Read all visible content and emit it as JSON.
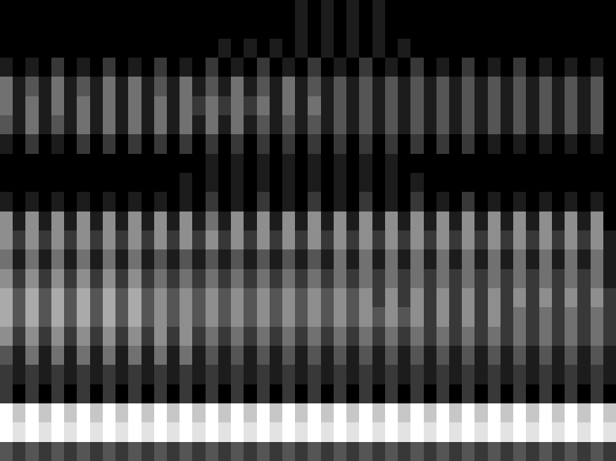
{
  "chart_data": {
    "type": "heatmap",
    "tick_labels": false,
    "color": "gray",
    "clim": [
      0,
      9
    ],
    "cells": [
      [
        0,
        0,
        0,
        0,
        0,
        0,
        0,
        0,
        0,
        0,
        0,
        0,
        0,
        0,
        0,
        0,
        0,
        0,
        0,
        0,
        0,
        0,
        0,
        1,
        0,
        1,
        0,
        1,
        0,
        1,
        0,
        0,
        0,
        0,
        0,
        0,
        0,
        0,
        0,
        0,
        0,
        0,
        0,
        0,
        0,
        0,
        0,
        0
      ],
      [
        0,
        0,
        0,
        0,
        0,
        0,
        0,
        0,
        0,
        0,
        0,
        0,
        0,
        0,
        0,
        0,
        0,
        0,
        0,
        0,
        0,
        0,
        0,
        1,
        0,
        1,
        0,
        1,
        0,
        1,
        0,
        0,
        0,
        0,
        0,
        0,
        0,
        0,
        0,
        0,
        0,
        0,
        0,
        0,
        0,
        0,
        0,
        0
      ],
      [
        0,
        0,
        0,
        0,
        0,
        0,
        0,
        0,
        0,
        0,
        0,
        0,
        0,
        0,
        0,
        0,
        0,
        1,
        0,
        1,
        0,
        1,
        0,
        1,
        0,
        1,
        0,
        1,
        0,
        1,
        0,
        1,
        0,
        0,
        0,
        0,
        0,
        0,
        0,
        0,
        0,
        0,
        0,
        0,
        0,
        0,
        0,
        0
      ],
      [
        1,
        0,
        1,
        0,
        2,
        0,
        1,
        0,
        2,
        0,
        1,
        0,
        2,
        0,
        1,
        0,
        2,
        0,
        1,
        0,
        2,
        0,
        1,
        0,
        2,
        0,
        1,
        0,
        2,
        0,
        1,
        0,
        2,
        0,
        1,
        0,
        2,
        0,
        1,
        0,
        2,
        0,
        1,
        0,
        1,
        0,
        1,
        0
      ],
      [
        4,
        1,
        3,
        1,
        4,
        1,
        3,
        1,
        4,
        1,
        4,
        1,
        3,
        1,
        4,
        1,
        3,
        1,
        4,
        1,
        3,
        1,
        4,
        1,
        3,
        1,
        3,
        1,
        3,
        1,
        3,
        1,
        3,
        1,
        3,
        1,
        3,
        1,
        3,
        1,
        3,
        1,
        3,
        1,
        3,
        1,
        3,
        0
      ],
      [
        4,
        1,
        4,
        1,
        4,
        1,
        4,
        1,
        4,
        1,
        4,
        1,
        4,
        1,
        4,
        2,
        4,
        2,
        4,
        2,
        4,
        1,
        4,
        1,
        4,
        1,
        3,
        1,
        3,
        1,
        3,
        1,
        3,
        1,
        3,
        1,
        3,
        1,
        3,
        1,
        3,
        1,
        3,
        1,
        3,
        1,
        3,
        0
      ],
      [
        3,
        1,
        4,
        1,
        3,
        1,
        4,
        1,
        4,
        1,
        4,
        1,
        4,
        1,
        4,
        1,
        4,
        1,
        4,
        1,
        3,
        1,
        3,
        1,
        3,
        1,
        3,
        1,
        3,
        1,
        3,
        1,
        3,
        1,
        3,
        1,
        3,
        1,
        3,
        1,
        3,
        1,
        3,
        1,
        3,
        1,
        3,
        0
      ],
      [
        1,
        0,
        2,
        0,
        1,
        0,
        2,
        0,
        2,
        0,
        2,
        0,
        2,
        0,
        2,
        0,
        2,
        0,
        2,
        0,
        2,
        0,
        2,
        0,
        2,
        0,
        2,
        0,
        2,
        0,
        2,
        0,
        2,
        0,
        2,
        0,
        2,
        0,
        1,
        0,
        1,
        0,
        1,
        0,
        1,
        0,
        1,
        0
      ],
      [
        0,
        0,
        0,
        0,
        0,
        0,
        0,
        0,
        0,
        0,
        0,
        0,
        0,
        0,
        0,
        0,
        1,
        0,
        1,
        0,
        1,
        0,
        1,
        0,
        1,
        0,
        1,
        0,
        1,
        0,
        1,
        0,
        0,
        0,
        0,
        0,
        0,
        0,
        0,
        0,
        0,
        0,
        0,
        0,
        0,
        0,
        0,
        0
      ],
      [
        0,
        0,
        0,
        0,
        0,
        0,
        0,
        0,
        0,
        0,
        0,
        0,
        0,
        0,
        1,
        0,
        1,
        0,
        1,
        0,
        1,
        0,
        1,
        0,
        1,
        0,
        1,
        0,
        1,
        0,
        1,
        0,
        1,
        0,
        0,
        0,
        0,
        0,
        0,
        0,
        0,
        0,
        0,
        0,
        0,
        0,
        0,
        0
      ],
      [
        1,
        0,
        1,
        0,
        1,
        0,
        1,
        0,
        1,
        0,
        1,
        0,
        1,
        0,
        1,
        0,
        2,
        0,
        1,
        0,
        2,
        0,
        1,
        0,
        2,
        0,
        1,
        0,
        2,
        0,
        1,
        0,
        2,
        0,
        1,
        0,
        2,
        0,
        1,
        0,
        1,
        0,
        1,
        0,
        1,
        0,
        1,
        0
      ],
      [
        5,
        1,
        5,
        1,
        5,
        1,
        5,
        1,
        5,
        1,
        5,
        1,
        5,
        1,
        5,
        1,
        4,
        1,
        5,
        1,
        5,
        1,
        5,
        1,
        5,
        1,
        5,
        1,
        5,
        1,
        5,
        1,
        5,
        1,
        5,
        1,
        5,
        1,
        5,
        1,
        5,
        1,
        5,
        1,
        5,
        1,
        5,
        0
      ],
      [
        5,
        2,
        5,
        2,
        5,
        2,
        5,
        2,
        5,
        2,
        5,
        2,
        5,
        2,
        5,
        2,
        5,
        2,
        5,
        2,
        5,
        2,
        5,
        2,
        5,
        2,
        5,
        2,
        5,
        2,
        5,
        2,
        5,
        2,
        5,
        2,
        5,
        2,
        5,
        2,
        5,
        2,
        5,
        2,
        5,
        2,
        5,
        1
      ],
      [
        4,
        1,
        4,
        1,
        4,
        1,
        4,
        1,
        4,
        1,
        4,
        1,
        3,
        1,
        3,
        1,
        3,
        1,
        3,
        1,
        3,
        1,
        3,
        1,
        3,
        1,
        4,
        1,
        4,
        1,
        4,
        1,
        4,
        1,
        4,
        1,
        4,
        1,
        4,
        1,
        4,
        1,
        4,
        1,
        4,
        1,
        4,
        1
      ],
      [
        5,
        2,
        5,
        2,
        5,
        2,
        5,
        2,
        5,
        2,
        5,
        2,
        4,
        2,
        4,
        2,
        4,
        2,
        4,
        2,
        4,
        2,
        4,
        2,
        4,
        2,
        4,
        2,
        4,
        2,
        4,
        2,
        4,
        2,
        4,
        2,
        4,
        2,
        4,
        2,
        4,
        2,
        4,
        2,
        4,
        2,
        4,
        1
      ],
      [
        6,
        3,
        6,
        3,
        6,
        3,
        6,
        3,
        6,
        3,
        6,
        3,
        5,
        3,
        5,
        3,
        5,
        3,
        5,
        3,
        5,
        3,
        5,
        3,
        5,
        3,
        5,
        3,
        5,
        2,
        5,
        2,
        5,
        2,
        5,
        2,
        5,
        2,
        5,
        2,
        5,
        2,
        5,
        2,
        5,
        2,
        5,
        2
      ],
      [
        6,
        3,
        6,
        3,
        6,
        3,
        6,
        3,
        6,
        3,
        6,
        3,
        5,
        3,
        5,
        3,
        5,
        3,
        5,
        3,
        5,
        3,
        5,
        3,
        5,
        3,
        5,
        3,
        5,
        3,
        5,
        3,
        5,
        2,
        5,
        2,
        5,
        2,
        5,
        2,
        4,
        2,
        4,
        2,
        4,
        2,
        4,
        2
      ],
      [
        5,
        2,
        5,
        2,
        5,
        2,
        5,
        2,
        5,
        2,
        5,
        2,
        5,
        2,
        5,
        2,
        4,
        2,
        4,
        2,
        4,
        2,
        4,
        2,
        4,
        2,
        4,
        2,
        4,
        2,
        4,
        2,
        4,
        2,
        4,
        2,
        4,
        2,
        4,
        2,
        4,
        2,
        4,
        2,
        4,
        2,
        4,
        2
      ],
      [
        3,
        1,
        4,
        1,
        4,
        1,
        4,
        1,
        4,
        1,
        4,
        1,
        4,
        1,
        4,
        1,
        3,
        1,
        3,
        1,
        3,
        1,
        3,
        1,
        3,
        1,
        3,
        1,
        3,
        1,
        3,
        1,
        3,
        1,
        3,
        1,
        3,
        1,
        3,
        1,
        3,
        1,
        3,
        1,
        3,
        1,
        3,
        1
      ],
      [
        2,
        1,
        2,
        1,
        2,
        1,
        2,
        1,
        2,
        1,
        2,
        1,
        2,
        1,
        2,
        1,
        2,
        1,
        2,
        1,
        2,
        1,
        2,
        1,
        2,
        1,
        2,
        1,
        2,
        1,
        2,
        1,
        2,
        1,
        2,
        1,
        2,
        1,
        2,
        1,
        2,
        1,
        2,
        1,
        2,
        1,
        2,
        1
      ],
      [
        2,
        0,
        2,
        0,
        2,
        0,
        2,
        0,
        2,
        0,
        2,
        0,
        2,
        0,
        2,
        0,
        2,
        0,
        2,
        0,
        2,
        0,
        2,
        0,
        2,
        0,
        2,
        0,
        2,
        0,
        2,
        0,
        2,
        0,
        2,
        0,
        2,
        0,
        2,
        0,
        2,
        0,
        2,
        0,
        2,
        0,
        2,
        0
      ],
      [
        9,
        7,
        9,
        7,
        9,
        7,
        9,
        7,
        9,
        7,
        9,
        7,
        9,
        7,
        9,
        7,
        9,
        7,
        9,
        7,
        9,
        7,
        9,
        7,
        9,
        7,
        9,
        7,
        9,
        7,
        9,
        7,
        9,
        7,
        9,
        7,
        9,
        7,
        9,
        7,
        9,
        7,
        9,
        7,
        9,
        7,
        9,
        7
      ],
      [
        9,
        8,
        9,
        8,
        9,
        8,
        9,
        8,
        9,
        8,
        9,
        8,
        9,
        8,
        9,
        8,
        9,
        8,
        9,
        8,
        9,
        8,
        9,
        8,
        9,
        8,
        9,
        8,
        9,
        8,
        9,
        8,
        9,
        8,
        9,
        8,
        9,
        8,
        9,
        8,
        9,
        8,
        9,
        8,
        9,
        8,
        9,
        8
      ],
      [
        3,
        2,
        3,
        2,
        3,
        2,
        3,
        2,
        3,
        2,
        3,
        2,
        3,
        2,
        3,
        2,
        3,
        2,
        3,
        2,
        3,
        2,
        3,
        2,
        3,
        2,
        3,
        2,
        3,
        2,
        3,
        2,
        3,
        2,
        3,
        2,
        3,
        2,
        3,
        2,
        3,
        2,
        3,
        2,
        3,
        2,
        3,
        2
      ]
    ]
  }
}
